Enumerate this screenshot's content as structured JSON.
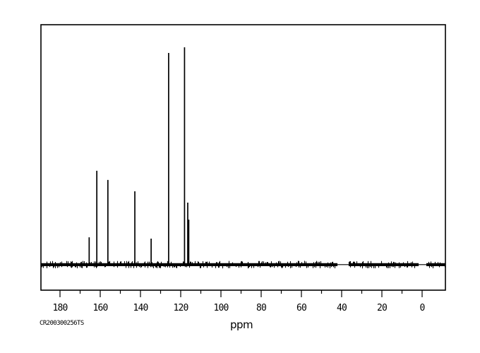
{
  "window": {
    "background_color": "#ffffff",
    "foreground_color": "#000000"
  },
  "chart_data": {
    "type": "line",
    "subtype": "13C NMR spectrum",
    "title": "",
    "xlabel": "ppm",
    "ylabel": "",
    "annotation": "CR200300256TS",
    "grid": false,
    "x_axis_reversed": true,
    "x_range_ppm": [
      189.5,
      -11.6
    ],
    "x_major_ticks": [
      180,
      160,
      140,
      120,
      100,
      80,
      60,
      40,
      20,
      0
    ],
    "x_minor_ticks": [
      170,
      150,
      130,
      110,
      90,
      70,
      50,
      30,
      10
    ],
    "peaks": [
      {
        "ppm": 165.5,
        "intensity": 0.129
      },
      {
        "ppm": 161.7,
        "intensity": 0.434
      },
      {
        "ppm": 156.2,
        "intensity": 0.392
      },
      {
        "ppm": 142.8,
        "intensity": 0.34
      },
      {
        "ppm": 134.7,
        "intensity": 0.123
      },
      {
        "ppm": 126.0,
        "intensity": 0.974
      },
      {
        "ppm": 118.1,
        "intensity": 1.0
      },
      {
        "ppm": 116.5,
        "intensity": 0.288
      },
      {
        "ppm": 116.0,
        "intensity": 0.21
      }
    ],
    "baseline_blanked_regions_ppm": [
      [
        42.1,
        36.5
      ],
      [
        1.8,
        -2.1
      ]
    ]
  }
}
